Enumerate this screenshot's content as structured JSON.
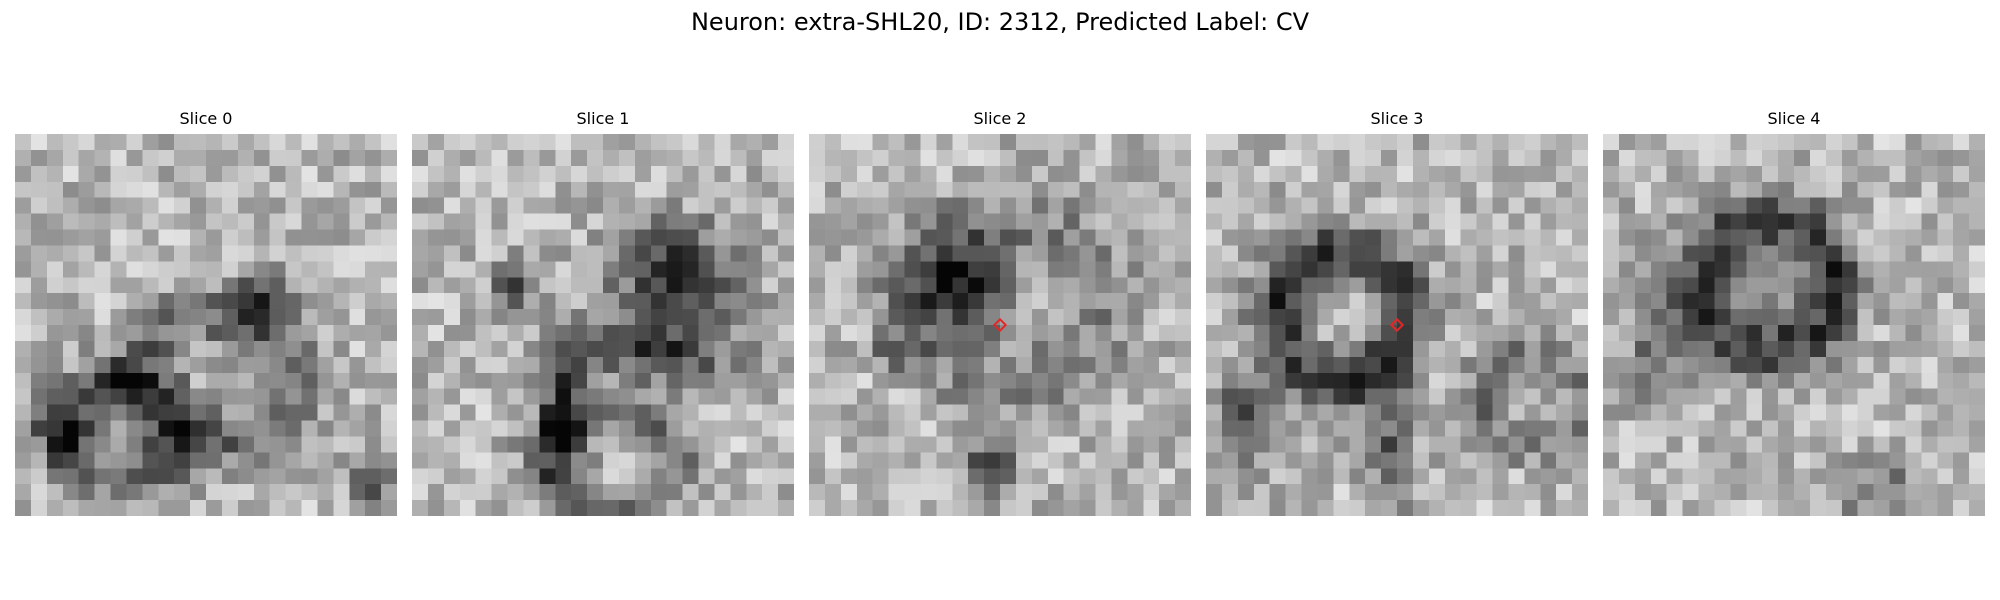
{
  "figure": {
    "title": "Neuron: extra-SHL20, ID: 2312, Predicted Label: CV"
  },
  "panels": [
    {
      "title": "Slice 0",
      "marker": false
    },
    {
      "title": "Slice 1",
      "marker": false
    },
    {
      "title": "Slice 2",
      "marker": true
    },
    {
      "title": "Slice 3",
      "marker": true
    },
    {
      "title": "Slice 4",
      "marker": false
    }
  ],
  "colors": {
    "marker": "#e32626"
  }
}
